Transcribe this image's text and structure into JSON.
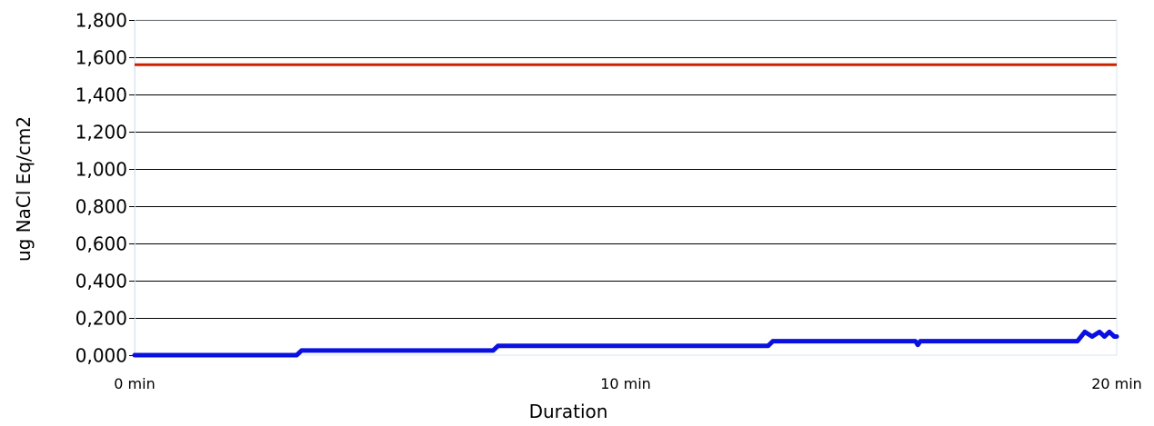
{
  "chart_data": {
    "type": "line",
    "title": "",
    "xlabel": "Duration",
    "ylabel": "ug NaCl Eq/cm2",
    "x_unit": "min",
    "xlim": [
      0,
      20
    ],
    "ylim": [
      0,
      1.8
    ],
    "grid": true,
    "legend": "none",
    "x_ticks": [
      {
        "value": 0,
        "label": "0 min"
      },
      {
        "value": 10,
        "label": "10 min"
      },
      {
        "value": 20,
        "label": "20 min"
      }
    ],
    "y_ticks": [
      {
        "value": 0.0,
        "label": "0,000"
      },
      {
        "value": 0.2,
        "label": "0,200"
      },
      {
        "value": 0.4,
        "label": "0,400"
      },
      {
        "value": 0.6,
        "label": "0,600"
      },
      {
        "value": 0.8,
        "label": "0,800"
      },
      {
        "value": 1.0,
        "label": "1,000"
      },
      {
        "value": 1.2,
        "label": "1,200"
      },
      {
        "value": 1.4,
        "label": "1,400"
      },
      {
        "value": 1.6,
        "label": "1,600"
      },
      {
        "value": 1.8,
        "label": "1,800"
      }
    ],
    "threshold": {
      "value": 1.56,
      "color": "#cc2200"
    },
    "series": [
      {
        "color": "#0a10e0",
        "x": [
          0,
          3.3,
          3.4,
          7.3,
          7.4,
          12.9,
          13.0,
          15.9,
          15.95,
          16.0,
          16.1,
          19.2,
          19.35,
          19.5,
          19.65,
          19.75,
          19.85,
          19.95,
          20.0
        ],
        "y": [
          0.0,
          0.0,
          0.025,
          0.025,
          0.05,
          0.05,
          0.075,
          0.075,
          0.055,
          0.075,
          0.075,
          0.075,
          0.125,
          0.1,
          0.125,
          0.1,
          0.125,
          0.1,
          0.1
        ]
      }
    ]
  }
}
